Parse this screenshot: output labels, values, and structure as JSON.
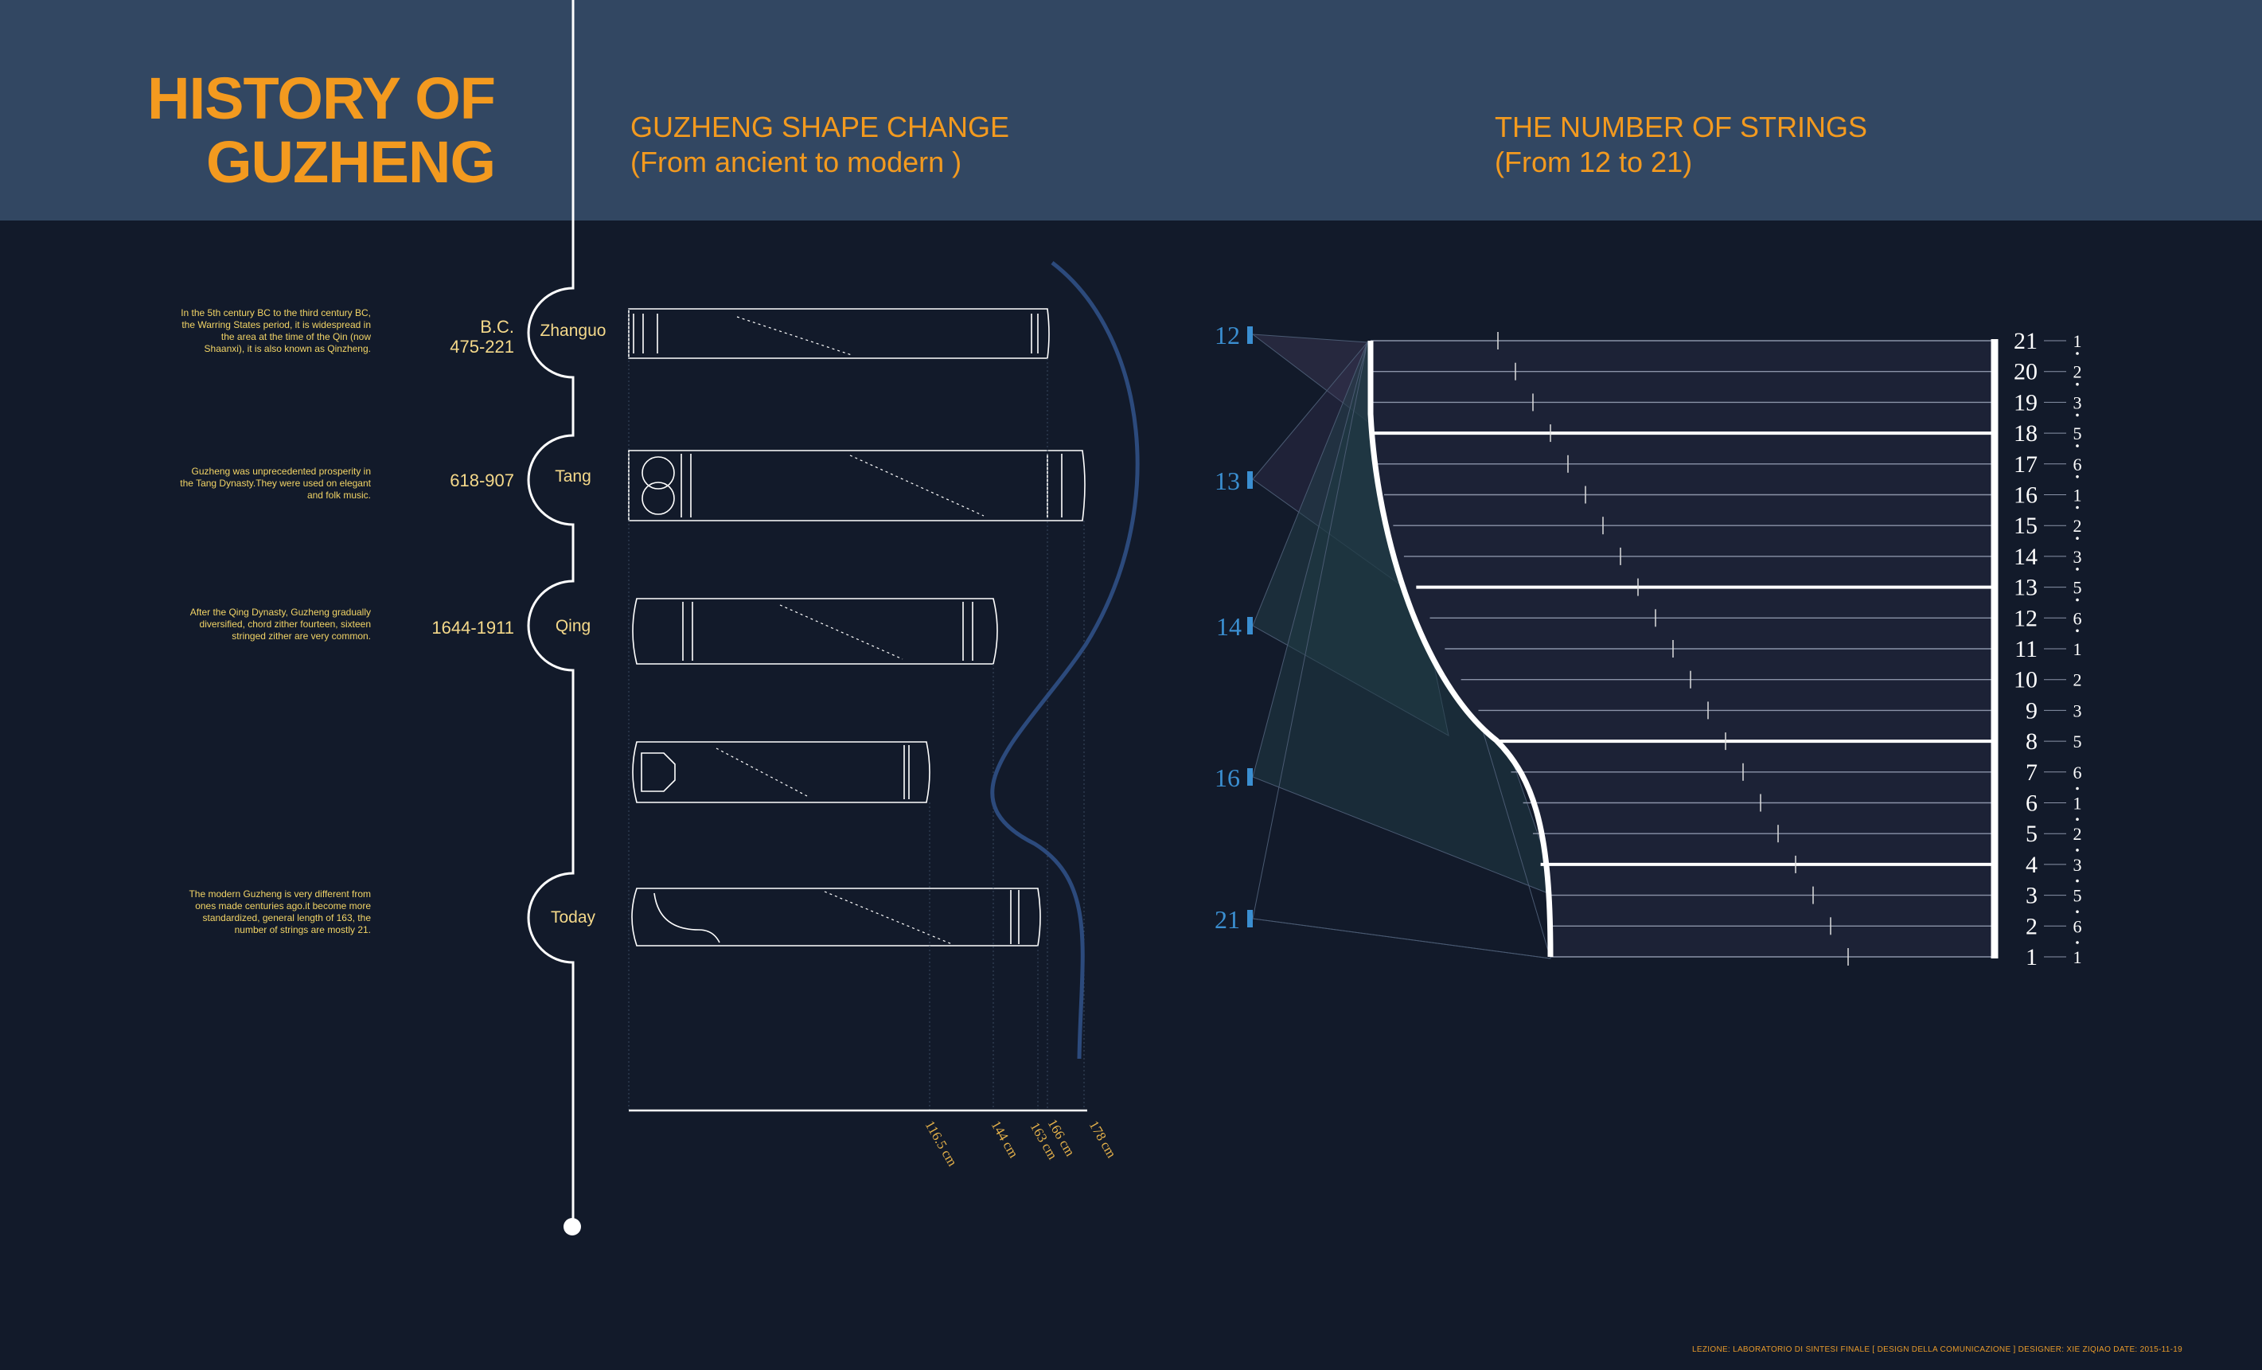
{
  "title": {
    "line1": "HISTORY OF",
    "line2": "GUZHENG"
  },
  "shape_section": {
    "title": "GUZHENG SHAPE CHANGE",
    "subtitle": "(From ancient to modern )"
  },
  "strings_section": {
    "title": "THE NUMBER OF STRINGS",
    "subtitle": "(From 12 to 21)"
  },
  "eras": [
    {
      "name": "Zhanguo",
      "date_line1": "B.C.",
      "date_line2": "475-221",
      "description": "In the 5th century BC to the third century BC, the Warring States period, it is widespread in the area at the time of the Qin (now Shaanxi), it is also known as Qinzheng."
    },
    {
      "name": "Tang",
      "date_line1": "",
      "date_line2": "618-907",
      "description": "Guzheng was unprecedented prosperity in the Tang Dynasty.They were used on elegant and folk music."
    },
    {
      "name": "Qing",
      "date_line1": "",
      "date_line2": "1644-1911",
      "description": "After the Qing Dynasty, Guzheng gradually diversified, chord zither fourteen, sixteen stringed zither are very common."
    },
    {
      "name": "Today",
      "date_line1": "",
      "date_line2": "",
      "description": "The modern Guzheng is very different from ones made centuries ago.it become more standardized, general length of 163, the number of strings are mostly 21."
    }
  ],
  "lengths": [
    "116.5 cm",
    "144 cm",
    "163 cm",
    "166 cm",
    "178 cm"
  ],
  "string_counts": [
    "12",
    "13",
    "14",
    "16",
    "21"
  ],
  "string_numbers": [
    "21",
    "20",
    "19",
    "18",
    "17",
    "16",
    "15",
    "14",
    "13",
    "12",
    "11",
    "10",
    "9",
    "8",
    "7",
    "6",
    "5",
    "4",
    "3",
    "2",
    "1"
  ],
  "notation": [
    "1",
    "2",
    "3",
    "5",
    "6",
    "1",
    "2",
    "3",
    "5",
    "6",
    "1",
    "2",
    "3",
    "5",
    "6",
    "1",
    "2",
    "3",
    "5",
    "6",
    "1"
  ],
  "colors": {
    "accent": "#f39a1f",
    "header": "#324762",
    "background": "#121a2a",
    "count_blue": "#3b8fd1",
    "curve_blue": "#2c4a7c"
  },
  "footer": "LEZIONE: LABORATORIO DI SINTESI FINALE [ DESIGN DELLA COMUNICAZIONE ]      DESIGNER: XIE ZIQIAO   DATE: 2015-11-19"
}
